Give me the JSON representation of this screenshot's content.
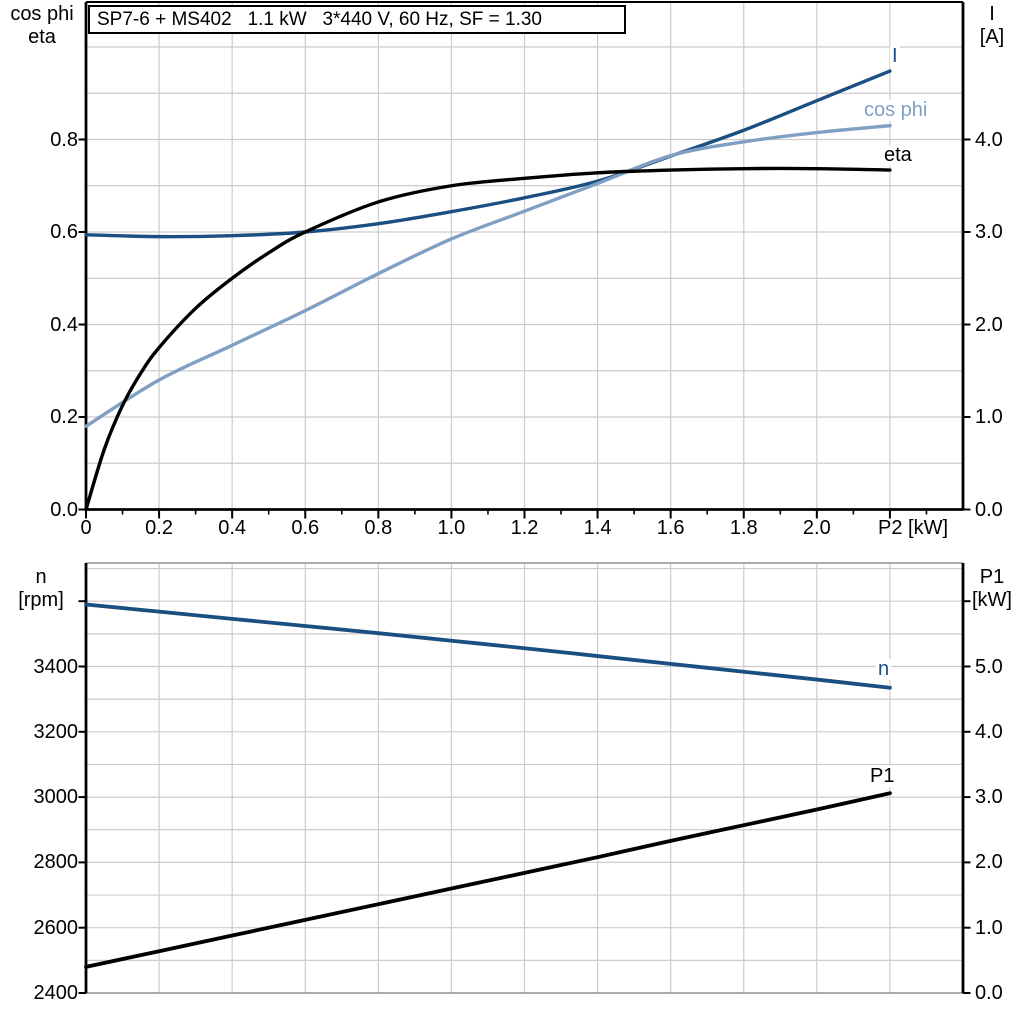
{
  "title": "SP7-6 + MS402   1.1 kW   3*440 V, 60 Hz, SF = 1.30",
  "colors": {
    "dark_blue": "#1b4f82",
    "light_blue": "#7f9fc3",
    "black": "#000000",
    "grid": "#cccccc",
    "border_gray": "#8f8f8f"
  },
  "chart_data": [
    {
      "type": "line",
      "title": "SP7-6 + MS402   1.1 kW   3*440 V, 60 Hz, SF = 1.30",
      "x_axis": {
        "label": "P2 [kW]",
        "range": [
          0,
          2.4
        ],
        "major_tick_step": 0.2,
        "minor_tick_step": 0.1,
        "tick_values": [
          0,
          0.2,
          0.4,
          0.6,
          0.8,
          1.0,
          1.2,
          1.4,
          1.6,
          1.8,
          2.0
        ],
        "tick_labels": [
          "0",
          "0.2",
          "0.4",
          "0.6",
          "0.8",
          "1.0",
          "1.2",
          "1.4",
          "1.6",
          "1.8",
          "2.0"
        ],
        "grid_step": 0.2
      },
      "left_axis": {
        "title_lines": [
          "cos phi",
          "eta"
        ],
        "range": [
          0,
          1.1
        ],
        "tick_values": [
          0.0,
          0.2,
          0.4,
          0.6,
          0.8
        ],
        "tick_labels": [
          "0.0",
          "0.2",
          "0.4",
          "0.6",
          "0.8"
        ],
        "grid_step": 0.1
      },
      "right_axis": {
        "title_lines": [
          "I",
          "[A]"
        ],
        "range": [
          0,
          5.5
        ],
        "tick_values": [
          0.0,
          1.0,
          2.0,
          3.0,
          4.0
        ],
        "tick_labels": [
          "0.0",
          "1.0",
          "2.0",
          "3.0",
          "4.0"
        ]
      },
      "legend_position": "curve-end-labels",
      "grid": true,
      "series": [
        {
          "name": "I",
          "axis": "right",
          "color": "#1b4f82",
          "x": [
            0,
            0.2,
            0.4,
            0.6,
            0.8,
            1.0,
            1.2,
            1.4,
            1.6,
            1.8,
            2.0,
            2.2
          ],
          "values": [
            2.97,
            2.95,
            2.96,
            3.0,
            3.09,
            3.22,
            3.37,
            3.55,
            3.82,
            4.1,
            4.42,
            4.74
          ]
        },
        {
          "name": "cos phi",
          "axis": "left",
          "color": "#7f9fc3",
          "x": [
            0,
            0.2,
            0.4,
            0.6,
            0.8,
            1.0,
            1.2,
            1.4,
            1.6,
            1.8,
            2.0,
            2.2
          ],
          "values": [
            0.18,
            0.28,
            0.355,
            0.43,
            0.51,
            0.585,
            0.645,
            0.705,
            0.765,
            0.795,
            0.815,
            0.83
          ]
        },
        {
          "name": "eta",
          "axis": "left",
          "color": "#000000",
          "x": [
            0,
            0.05,
            0.1,
            0.15,
            0.2,
            0.3,
            0.4,
            0.5,
            0.6,
            0.8,
            1.0,
            1.2,
            1.4,
            1.6,
            1.8,
            2.0,
            2.2
          ],
          "values": [
            0,
            0.13,
            0.225,
            0.295,
            0.35,
            0.435,
            0.5,
            0.555,
            0.6,
            0.665,
            0.7,
            0.716,
            0.728,
            0.734,
            0.737,
            0.737,
            0.734
          ]
        }
      ]
    },
    {
      "type": "line",
      "x_axis": {
        "label": "",
        "range": [
          0,
          2.4
        ],
        "grid_step": 0.2
      },
      "left_axis": {
        "title_lines": [
          "n",
          "[rpm]"
        ],
        "range": [
          2400,
          3720
        ],
        "tick_values": [
          2400,
          2600,
          2800,
          3000,
          3200,
          3400
        ],
        "tick_labels": [
          "2400",
          "2600",
          "2800",
          "3000",
          "3200",
          "3400"
        ],
        "extra_unlabeled_ticks": [
          3600
        ],
        "grid_step": 100
      },
      "right_axis": {
        "title_lines": [
          "P1",
          "[kW]"
        ],
        "range": [
          0,
          6.6
        ],
        "tick_values": [
          0.0,
          1.0,
          2.0,
          3.0,
          4.0,
          5.0
        ],
        "tick_labels": [
          "0.0",
          "1.0",
          "2.0",
          "3.0",
          "4.0",
          "5.0"
        ],
        "extra_unlabeled_ticks": [
          6.0
        ]
      },
      "legend_position": "curve-end-labels",
      "grid": true,
      "series": [
        {
          "name": "n",
          "axis": "left",
          "color": "#1b4f82",
          "x": [
            0,
            0.2,
            0.4,
            0.6,
            0.8,
            1.0,
            1.2,
            1.4,
            1.6,
            1.8,
            2.0,
            2.2
          ],
          "values": [
            3590,
            3568,
            3546,
            3524,
            3502,
            3479,
            3456,
            3432,
            3408,
            3384,
            3360,
            3335
          ]
        },
        {
          "name": "P1",
          "axis": "right",
          "color": "#000000",
          "x": [
            0,
            0.2,
            0.4,
            0.6,
            0.8,
            1.0,
            1.2,
            1.4,
            1.6,
            1.8,
            2.0,
            2.2
          ],
          "values": [
            0.4,
            0.64,
            0.88,
            1.12,
            1.36,
            1.6,
            1.84,
            2.08,
            2.33,
            2.57,
            2.81,
            3.06
          ]
        }
      ]
    }
  ]
}
